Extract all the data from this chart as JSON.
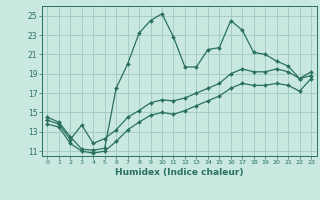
{
  "xlabel": "Humidex (Indice chaleur)",
  "bg_color": "#c8e8e0",
  "grid_color": "#a0c8c0",
  "line_color": "#2a7060",
  "xlim": [
    -0.5,
    23.5
  ],
  "ylim": [
    10.5,
    26.0
  ],
  "xticks": [
    0,
    1,
    2,
    3,
    4,
    5,
    6,
    7,
    8,
    9,
    10,
    11,
    12,
    13,
    14,
    15,
    16,
    17,
    18,
    19,
    20,
    21,
    22,
    23
  ],
  "yticks": [
    11,
    13,
    15,
    17,
    19,
    21,
    23,
    25
  ],
  "line1_y": [
    14.5,
    14.0,
    12.5,
    11.2,
    11.1,
    11.3,
    17.5,
    20.0,
    23.2,
    24.5,
    25.2,
    22.8,
    19.7,
    19.7,
    21.5,
    21.7,
    24.5,
    23.5,
    21.2,
    21.0,
    20.3,
    19.8,
    18.5,
    19.2
  ],
  "line2_y": [
    14.2,
    13.8,
    12.2,
    13.7,
    11.8,
    12.3,
    13.2,
    14.5,
    15.2,
    16.0,
    16.3,
    16.2,
    16.5,
    17.0,
    17.5,
    18.0,
    19.0,
    19.5,
    19.2,
    19.2,
    19.5,
    19.2,
    18.5,
    18.8
  ],
  "line3_y": [
    13.8,
    13.5,
    11.8,
    11.0,
    10.8,
    11.0,
    12.0,
    13.2,
    14.0,
    14.7,
    15.0,
    14.8,
    15.2,
    15.7,
    16.2,
    16.7,
    17.5,
    18.0,
    17.8,
    17.8,
    18.0,
    17.8,
    17.2,
    18.5
  ],
  "figsize": [
    3.2,
    2.0
  ],
  "dpi": 100
}
